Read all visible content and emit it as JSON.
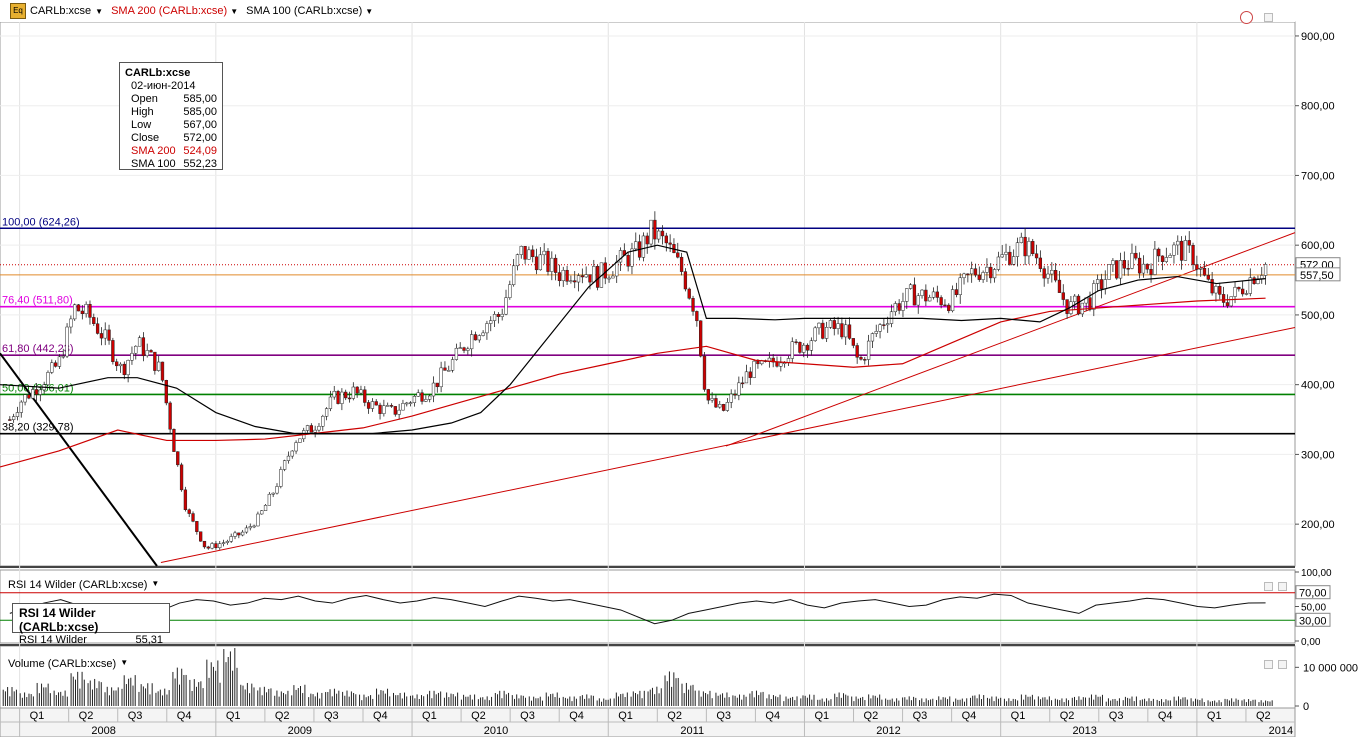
{
  "header": {
    "symbol": "CARLb:xcse",
    "sma200_label": "SMA 200 (CARLb:xcse)",
    "sma100_label": "SMA 100 (CARLb:xcse)",
    "sma200_color": "#cc0000",
    "sma100_color": "#000000",
    "icon": "eq-icon"
  },
  "infobox": {
    "title": "CARLb:xcse",
    "date": "02-июн-2014",
    "rows": [
      {
        "label": "Open",
        "value": "585,00"
      },
      {
        "label": "High",
        "value": "585,00"
      },
      {
        "label": "Low",
        "value": "567,00"
      },
      {
        "label": "Close",
        "value": "572,00"
      },
      {
        "label": "SMA 200",
        "value": "524,09"
      },
      {
        "label": "SMA 100",
        "value": "552,23"
      }
    ]
  },
  "rsi": {
    "header": "RSI 14 Wilder (CARLb:xcse)",
    "box_title": "RSI 14 Wilder (CARLb:xcse)",
    "box_label": "RSI 14 Wilder",
    "box_value": "55,31"
  },
  "volume": {
    "header": "Volume (CARLb:xcse)"
  },
  "chart_data": [
    {
      "type": "line",
      "panel": "price",
      "ylim": [
        140,
        920
      ],
      "yticks": [
        200,
        300,
        400,
        500,
        600,
        700,
        800,
        900
      ],
      "ytick_labels": [
        "200,00",
        "300,00",
        "400,00",
        "500,00",
        "600,00",
        "700,00",
        "800,00",
        "900,00"
      ],
      "price_tags": [
        {
          "label": "572,00",
          "value": 572
        },
        {
          "label": "557,50",
          "value": 557.5
        }
      ],
      "fib_levels": [
        {
          "label": "100,00 (624,26)",
          "value": 624.26,
          "color": "#000080"
        },
        {
          "label": "76,40 (511,80)",
          "value": 511.8,
          "color": "#e000e0"
        },
        {
          "label": "61,80 (442,23)",
          "value": 442.23,
          "color": "#800080"
        },
        {
          "label": "50,00 (386,01)",
          "value": 386.01,
          "color": "#008000"
        },
        {
          "label": "38,20 (329,78)",
          "value": 329.78,
          "color": "#000000"
        }
      ],
      "time_axis": {
        "start": 2007.9,
        "end": 2014.5,
        "quarters": [
          {
            "t": 2008.0,
            "label": "Q1"
          },
          {
            "t": 2008.25,
            "label": "Q2"
          },
          {
            "t": 2008.5,
            "label": "Q3"
          },
          {
            "t": 2008.75,
            "label": "Q4"
          },
          {
            "t": 2009.0,
            "label": "Q1"
          },
          {
            "t": 2009.25,
            "label": "Q2"
          },
          {
            "t": 2009.5,
            "label": "Q3"
          },
          {
            "t": 2009.75,
            "label": "Q4"
          },
          {
            "t": 2010.0,
            "label": "Q1"
          },
          {
            "t": 2010.25,
            "label": "Q2"
          },
          {
            "t": 2010.5,
            "label": "Q3"
          },
          {
            "t": 2010.75,
            "label": "Q4"
          },
          {
            "t": 2011.0,
            "label": "Q1"
          },
          {
            "t": 2011.25,
            "label": "Q2"
          },
          {
            "t": 2011.5,
            "label": "Q3"
          },
          {
            "t": 2011.75,
            "label": "Q4"
          },
          {
            "t": 2012.0,
            "label": "Q1"
          },
          {
            "t": 2012.25,
            "label": "Q2"
          },
          {
            "t": 2012.5,
            "label": "Q3"
          },
          {
            "t": 2012.75,
            "label": "Q4"
          },
          {
            "t": 2013.0,
            "label": "Q1"
          },
          {
            "t": 2013.25,
            "label": "Q2"
          },
          {
            "t": 2013.5,
            "label": "Q3"
          },
          {
            "t": 2013.75,
            "label": "Q4"
          },
          {
            "t": 2014.0,
            "label": "Q1"
          },
          {
            "t": 2014.25,
            "label": "Q2"
          }
        ],
        "years": [
          {
            "t": 2008.0,
            "label": "2008"
          },
          {
            "t": 2009.0,
            "label": "2009"
          },
          {
            "t": 2010.0,
            "label": "2010"
          },
          {
            "t": 2011.0,
            "label": "2011"
          },
          {
            "t": 2012.0,
            "label": "2012"
          },
          {
            "t": 2013.0,
            "label": "2013"
          },
          {
            "t": 2014.0,
            "label": "2014"
          }
        ]
      },
      "close_series": {
        "t": [
          2007.95,
          2008.0,
          2008.1,
          2008.2,
          2008.28,
          2008.35,
          2008.45,
          2008.52,
          2008.6,
          2008.65,
          2008.72,
          2008.78,
          2008.85,
          2008.95,
          2009.05,
          2009.15,
          2009.22,
          2009.3,
          2009.4,
          2009.5,
          2009.6,
          2009.7,
          2009.8,
          2009.9,
          2010.0,
          2010.1,
          2010.2,
          2010.3,
          2010.38,
          2010.45,
          2010.55,
          2010.65,
          2010.75,
          2010.85,
          2010.95,
          2011.05,
          2011.15,
          2011.22,
          2011.3,
          2011.38,
          2011.45,
          2011.5,
          2011.58,
          2011.65,
          2011.72,
          2011.8,
          2011.9,
          2012.0,
          2012.1,
          2012.2,
          2012.28,
          2012.35,
          2012.45,
          2012.55,
          2012.65,
          2012.75,
          2012.85,
          2012.95,
          2013.05,
          2013.12,
          2013.2,
          2013.28,
          2013.35,
          2013.45,
          2013.55,
          2013.65,
          2013.75,
          2013.82,
          2013.9,
          2013.98,
          2014.05,
          2014.12,
          2014.2,
          2014.28,
          2014.35
        ],
        "values": [
          350,
          375,
          400,
          430,
          510,
          500,
          460,
          420,
          460,
          445,
          420,
          320,
          220,
          165,
          175,
          190,
          210,
          250,
          320,
          340,
          380,
          390,
          370,
          360,
          380,
          395,
          430,
          470,
          490,
          500,
          590,
          580,
          560,
          565,
          555,
          575,
          590,
          620,
          600,
          560,
          500,
          380,
          360,
          390,
          420,
          425,
          445,
          460,
          480,
          480,
          430,
          470,
          510,
          530,
          525,
          520,
          560,
          570,
          590,
          600,
          580,
          540,
          510,
          520,
          560,
          575,
          570,
          590,
          595,
          585,
          545,
          520,
          530,
          555,
          572
        ]
      },
      "sma200": {
        "t": [
          2007.9,
          2008.2,
          2008.5,
          2008.75,
          2009.0,
          2009.25,
          2009.5,
          2009.75,
          2010.0,
          2010.25,
          2010.5,
          2010.75,
          2011.0,
          2011.25,
          2011.5,
          2011.75,
          2012.0,
          2012.25,
          2012.5,
          2012.75,
          2013.0,
          2013.25,
          2013.5,
          2013.75,
          2014.0,
          2014.35
        ],
        "values": [
          282,
          305,
          335,
          320,
          320,
          322,
          330,
          338,
          355,
          375,
          395,
          415,
          430,
          445,
          455,
          435,
          430,
          425,
          430,
          460,
          490,
          505,
          510,
          515,
          520,
          524
        ]
      },
      "sma100": {
        "t": [
          2007.9,
          2008.2,
          2008.45,
          2008.6,
          2008.8,
          2009.0,
          2009.2,
          2009.4,
          2009.6,
          2009.8,
          2010.0,
          2010.2,
          2010.35,
          2010.5,
          2010.7,
          2010.9,
          2011.1,
          2011.25,
          2011.4,
          2011.5,
          2011.65,
          2011.85,
          2012.0,
          2012.2,
          2012.4,
          2012.6,
          2012.8,
          2013.0,
          2013.2,
          2013.35,
          2013.5,
          2013.7,
          2013.9,
          2014.1,
          2014.35
        ],
        "values": [
          400,
          395,
          410,
          410,
          395,
          360,
          340,
          330,
          330,
          330,
          335,
          345,
          360,
          400,
          470,
          540,
          590,
          600,
          590,
          495,
          495,
          493,
          495,
          495,
          495,
          495,
          492,
          495,
          490,
          510,
          535,
          550,
          555,
          545,
          552
        ]
      },
      "trendlines": [
        {
          "t": [
            2007.9,
            2008.7
          ],
          "values": [
            445,
            140
          ],
          "color": "#000000"
        },
        {
          "t": [
            2008.72,
            2014.5
          ],
          "values": [
            145,
            482
          ],
          "color": "#cc0000"
        },
        {
          "t": [
            2011.6,
            2014.5
          ],
          "values": [
            312,
            618
          ],
          "color": "#cc0000"
        }
      ]
    },
    {
      "type": "line",
      "panel": "rsi",
      "ylim": [
        0,
        100
      ],
      "yticks": [
        0,
        50,
        100
      ],
      "ytick_labels": [
        "0,00",
        "50,00",
        "100,00"
      ],
      "levels": [
        {
          "label": "70,00",
          "value": 70
        },
        {
          "label": "30,00",
          "value": 30
        }
      ],
      "values": [
        40,
        48,
        55,
        60,
        52,
        38,
        32,
        25,
        35,
        45,
        55,
        60,
        58,
        52,
        55,
        62,
        60,
        65,
        58,
        55,
        62,
        66,
        60,
        55,
        58,
        63,
        60,
        55,
        50,
        58,
        65,
        62,
        58,
        60,
        55,
        50,
        45,
        35,
        25,
        30,
        40,
        45,
        50,
        55,
        58,
        55,
        60,
        52,
        48,
        55,
        58,
        60,
        55,
        50,
        52,
        60,
        64,
        62,
        68,
        66,
        55,
        50,
        45,
        40,
        52,
        55,
        58,
        62,
        60,
        55,
        50,
        48,
        52,
        55,
        55.31
      ]
    },
    {
      "type": "bar",
      "panel": "volume",
      "ylim": [
        0,
        15000000
      ],
      "yticks": [
        0,
        10000000
      ],
      "ytick_labels": [
        "0",
        "10 000 000"
      ],
      "values": [
        5000000,
        3500000,
        6000000,
        4000000,
        9000000,
        7000000,
        5000000,
        8000000,
        6000000,
        4500000,
        10000000,
        7000000,
        12000000,
        15000000,
        6000000,
        5000000,
        4000000,
        5500000,
        3500000,
        4500000,
        4000000,
        3000000,
        4500000,
        3500000,
        3000000,
        4000000,
        3500000,
        3000000,
        2500000,
        4000000,
        3000000,
        2500000,
        3500000,
        2500000,
        3000000,
        2000000,
        3500000,
        4000000,
        5000000,
        9000000,
        6000000,
        4000000,
        3500000,
        3000000,
        4000000,
        3000000,
        2500000,
        3000000,
        2000000,
        3500000,
        2500000,
        3000000,
        2000000,
        2500000,
        2000000,
        2500000,
        2000000,
        3000000,
        2500000,
        2000000,
        3000000,
        2500000,
        2000000,
        2500000,
        3000000,
        2000000,
        2500000,
        2000000,
        1800000,
        2500000,
        2000000,
        1500000,
        2000000,
        1800000,
        1500000
      ]
    }
  ]
}
